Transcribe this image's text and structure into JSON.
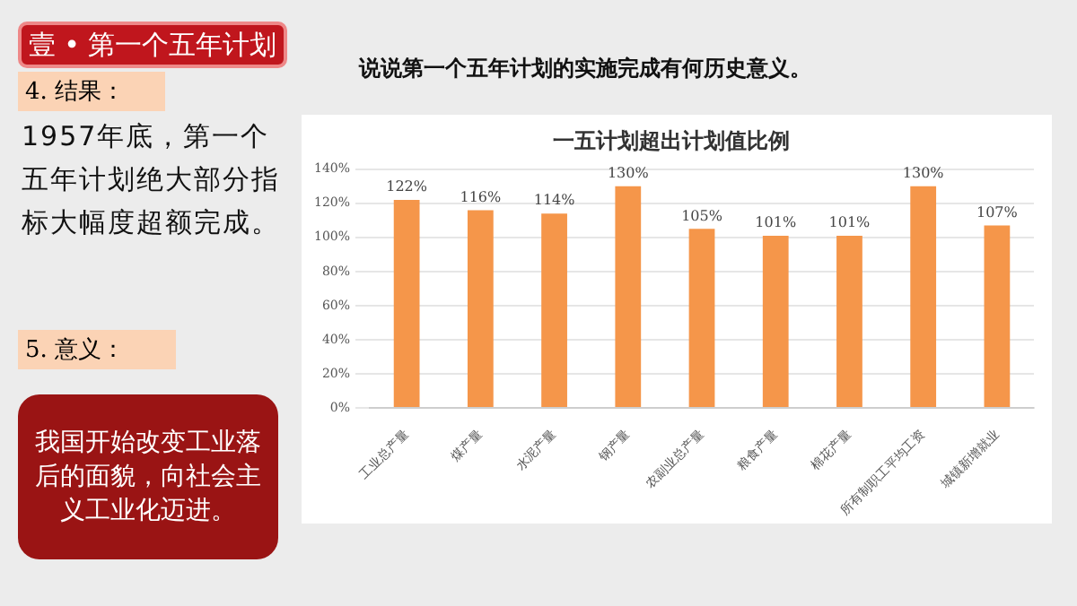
{
  "chart_data": {
    "type": "bar",
    "title": "一五计划超出计划值比例",
    "categories": [
      "工业总产量",
      "煤产量",
      "水泥产量",
      "钢产量",
      "农副业总产量",
      "粮食产量",
      "棉花产量",
      "所有制职工平均工资",
      "城镇新增就业"
    ],
    "values": [
      122,
      116,
      114,
      130,
      105,
      101,
      101,
      130,
      107
    ],
    "value_labels": [
      "122%",
      "116%",
      "114%",
      "130%",
      "105%",
      "101%",
      "101%",
      "130%",
      "107%"
    ],
    "color": "#f5964a",
    "ylim": [
      0,
      140
    ],
    "yticks": [
      {
        "value": 0,
        "label": "0%"
      },
      {
        "value": 20,
        "label": "20%"
      },
      {
        "value": 40,
        "label": "40%"
      },
      {
        "value": 60,
        "label": "60%"
      },
      {
        "value": 80,
        "label": "80%"
      },
      {
        "value": 100,
        "label": "100%"
      },
      {
        "value": 120,
        "label": "120%"
      },
      {
        "value": 140,
        "label": "140%"
      }
    ],
    "grid": "y",
    "legend": false,
    "annotations": [
      "壹 • 第一个五年计划",
      "说说第一个五年计划的实施完成有何历史意义。",
      "4. 结果：",
      "1957年底，第一个五年计划绝大部分指标大幅度超额完成。",
      "5. 意义：",
      "我国开始改变工业落后的面貌，向社会主义工业化迈进。"
    ]
  }
}
